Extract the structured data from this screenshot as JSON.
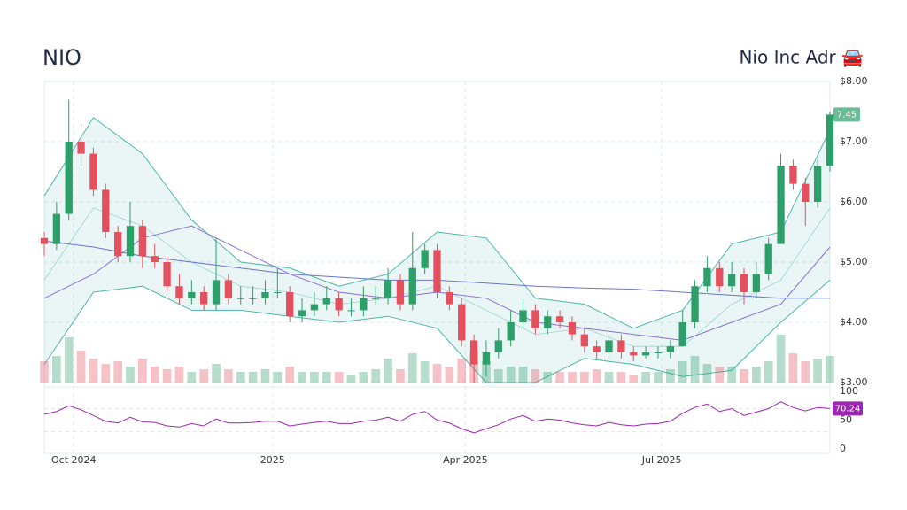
{
  "header": {
    "symbol": "NIO",
    "name": "Nio Inc Adr 🚘"
  },
  "chart_data": {
    "type": "candlestick",
    "xlim": [
      0,
      64
    ],
    "xticks": [
      {
        "value": 2.4,
        "label": "Oct 2024"
      },
      {
        "value": 18.6,
        "label": "2025"
      },
      {
        "value": 34.3,
        "label": "Apr 2025"
      },
      {
        "value": 50.3,
        "label": "Jul 2025"
      }
    ],
    "ylim": [
      3,
      8
    ],
    "yticks": [
      {
        "value": 3,
        "label": "$3.00"
      },
      {
        "value": 4,
        "label": "$4.00"
      },
      {
        "value": 5,
        "label": "$5.00"
      },
      {
        "value": 6,
        "label": "$6.00"
      },
      {
        "value": 7,
        "label": "$7.00"
      },
      {
        "value": 8,
        "label": "$8.00"
      }
    ],
    "grid": true,
    "up_color": "#2e9e6b",
    "down_color": "#e5505e",
    "open": [
      5.4,
      5.3,
      5.8,
      7.0,
      6.8,
      6.2,
      5.5,
      5.1,
      5.6,
      5.1,
      5.0,
      4.6,
      4.4,
      4.5,
      4.3,
      4.7,
      4.4,
      4.4,
      4.4,
      4.5,
      4.5,
      4.1,
      4.2,
      4.3,
      4.4,
      4.2,
      4.2,
      4.4,
      4.4,
      4.7,
      4.3,
      4.9,
      5.2,
      4.5,
      4.3,
      3.7,
      3.3,
      3.5,
      3.7,
      4.0,
      4.2,
      3.9,
      4.1,
      4.0,
      3.8,
      3.6,
      3.5,
      3.7,
      3.5,
      3.45,
      3.5,
      3.5,
      3.6,
      4.0,
      4.6,
      4.9,
      4.6,
      4.8,
      4.5,
      4.8,
      5.3,
      6.6,
      6.3,
      6.0,
      6.6
    ],
    "high": [
      5.5,
      6.0,
      7.7,
      7.3,
      6.9,
      6.3,
      5.6,
      6.0,
      5.7,
      5.3,
      5.1,
      4.8,
      4.7,
      4.6,
      5.4,
      4.8,
      4.6,
      4.6,
      4.7,
      4.9,
      4.6,
      4.4,
      4.5,
      4.6,
      4.5,
      4.4,
      4.6,
      4.6,
      4.9,
      4.8,
      5.5,
      5.3,
      5.3,
      4.6,
      4.4,
      3.8,
      3.7,
      3.9,
      4.2,
      4.4,
      4.3,
      4.2,
      4.2,
      4.1,
      3.9,
      3.7,
      3.8,
      3.8,
      3.6,
      3.6,
      3.6,
      3.7,
      4.2,
      4.7,
      5.1,
      5.0,
      5.0,
      4.9,
      5.0,
      5.4,
      6.8,
      6.7,
      6.4,
      6.7,
      7.5
    ],
    "low": [
      5.1,
      5.2,
      5.7,
      6.6,
      6.1,
      5.4,
      5.0,
      5.0,
      4.9,
      4.9,
      4.5,
      4.3,
      4.3,
      4.2,
      4.2,
      4.3,
      4.3,
      4.3,
      4.3,
      4.4,
      4.0,
      4.0,
      4.1,
      4.2,
      4.1,
      4.1,
      4.1,
      4.3,
      4.3,
      4.2,
      4.2,
      4.8,
      4.4,
      4.2,
      3.6,
      3.0,
      3.1,
      3.4,
      3.6,
      3.9,
      3.8,
      3.8,
      3.9,
      3.7,
      3.5,
      3.4,
      3.4,
      3.4,
      3.35,
      3.4,
      3.4,
      3.4,
      3.6,
      3.9,
      4.5,
      4.5,
      4.5,
      4.3,
      4.4,
      4.7,
      5.3,
      6.2,
      5.6,
      5.9,
      6.5
    ],
    "close": [
      5.3,
      5.8,
      7.0,
      6.8,
      6.2,
      5.5,
      5.1,
      5.6,
      5.1,
      5.0,
      4.6,
      4.4,
      4.5,
      4.3,
      4.7,
      4.4,
      4.4,
      4.4,
      4.5,
      4.5,
      4.1,
      4.2,
      4.3,
      4.4,
      4.2,
      4.2,
      4.4,
      4.4,
      4.7,
      4.3,
      4.9,
      5.2,
      4.5,
      4.3,
      3.7,
      3.3,
      3.5,
      3.7,
      4.0,
      4.2,
      3.9,
      4.1,
      4.0,
      3.8,
      3.6,
      3.5,
      3.7,
      3.5,
      3.45,
      3.5,
      3.5,
      3.6,
      4.0,
      4.6,
      4.9,
      4.6,
      4.8,
      4.5,
      4.8,
      5.3,
      6.6,
      6.3,
      6.0,
      6.6,
      7.45
    ],
    "bands": {
      "color": "#4db6ac",
      "x": [
        0,
        4,
        8,
        12,
        16,
        20,
        24,
        28,
        32,
        36,
        40,
        44,
        48,
        52,
        56,
        60,
        64
      ],
      "upper": [
        6.1,
        7.4,
        6.8,
        5.7,
        5.0,
        4.9,
        4.6,
        4.8,
        5.5,
        5.4,
        4.4,
        4.3,
        3.9,
        4.2,
        5.3,
        5.5,
        7.2
      ],
      "middle": [
        4.7,
        5.9,
        5.6,
        5.0,
        4.6,
        4.5,
        4.3,
        4.4,
        4.6,
        4.2,
        3.8,
        3.9,
        3.6,
        3.6,
        4.3,
        4.7,
        5.9
      ],
      "lower": [
        3.3,
        4.5,
        4.6,
        4.2,
        4.2,
        4.1,
        4.0,
        4.1,
        3.9,
        3.0,
        3.0,
        3.4,
        3.3,
        3.1,
        3.2,
        4.0,
        4.7
      ]
    },
    "series": [
      {
        "color": "#6a75c9",
        "x": [
          0,
          4,
          8,
          12,
          16,
          20,
          24,
          28,
          32,
          36,
          40,
          44,
          48,
          52,
          56,
          60,
          64
        ],
        "values": [
          5.35,
          5.25,
          5.1,
          5.0,
          4.9,
          4.8,
          4.75,
          4.7,
          4.7,
          4.65,
          4.6,
          4.57,
          4.55,
          4.5,
          4.45,
          4.4,
          4.4
        ]
      },
      {
        "color": "#8e6fd0",
        "x": [
          0,
          4,
          8,
          12,
          16,
          20,
          24,
          28,
          32,
          36,
          40,
          44,
          48,
          52,
          56,
          60,
          64
        ],
        "values": [
          4.4,
          4.8,
          5.4,
          5.6,
          5.2,
          4.8,
          4.5,
          4.4,
          4.5,
          4.4,
          4.0,
          3.9,
          3.8,
          3.7,
          4.0,
          4.3,
          5.25
        ]
      }
    ],
    "volume": {
      "ylim": [
        0,
        100
      ],
      "values": [
        40,
        50,
        85,
        60,
        45,
        35,
        40,
        30,
        45,
        30,
        25,
        30,
        20,
        25,
        35,
        25,
        20,
        20,
        25,
        20,
        30,
        20,
        20,
        20,
        20,
        15,
        20,
        25,
        45,
        25,
        55,
        40,
        35,
        30,
        45,
        60,
        40,
        25,
        30,
        30,
        25,
        20,
        20,
        20,
        20,
        25,
        20,
        20,
        15,
        20,
        20,
        25,
        40,
        50,
        35,
        30,
        30,
        25,
        30,
        40,
        90,
        55,
        40,
        45,
        50
      ]
    },
    "rsi": {
      "color": "#9c27b0",
      "ylim": [
        0,
        100
      ],
      "yticks": [
        0,
        50,
        100
      ],
      "levels": [
        30,
        70
      ],
      "values": [
        60,
        65,
        75,
        68,
        58,
        48,
        45,
        55,
        47,
        46,
        40,
        38,
        44,
        40,
        52,
        45,
        45,
        46,
        48,
        48,
        40,
        43,
        46,
        48,
        44,
        44,
        48,
        50,
        55,
        48,
        60,
        65,
        50,
        45,
        35,
        28,
        35,
        42,
        52,
        58,
        48,
        52,
        50,
        45,
        42,
        40,
        46,
        42,
        40,
        43,
        44,
        48,
        62,
        72,
        78,
        65,
        70,
        58,
        64,
        70,
        82,
        72,
        66,
        72,
        70.24
      ]
    }
  }
}
